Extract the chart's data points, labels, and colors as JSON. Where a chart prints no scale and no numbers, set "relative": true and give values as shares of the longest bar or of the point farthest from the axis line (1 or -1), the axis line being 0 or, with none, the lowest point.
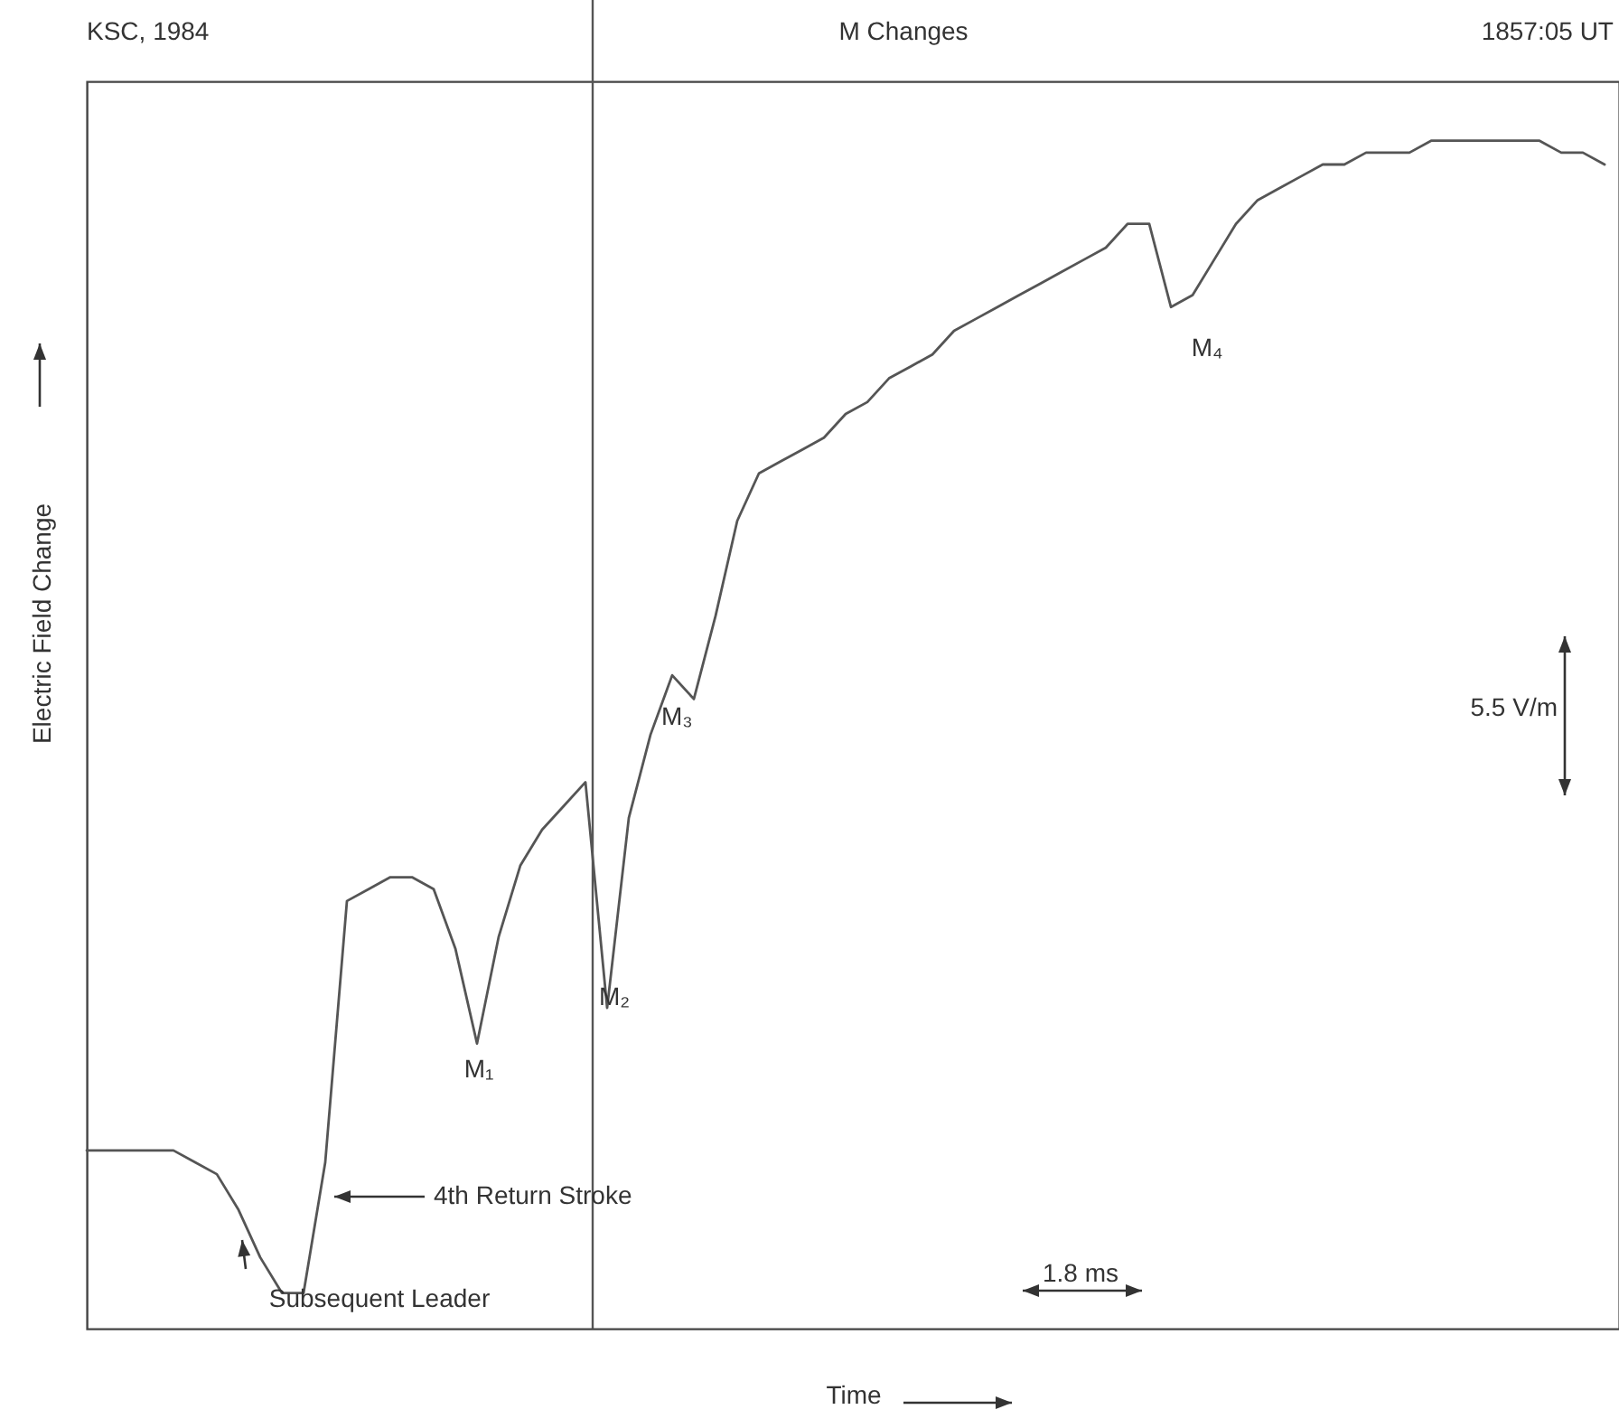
{
  "chart_data": {
    "type": "line",
    "title": "M Changes",
    "xlabel": "Time",
    "ylabel": "Electric Field Change",
    "relative": true,
    "categories": [
      null,
      null,
      null,
      null,
      null,
      null,
      null,
      null,
      null,
      null,
      null,
      null,
      null,
      null,
      null,
      null,
      null,
      null,
      null,
      null,
      null,
      null,
      null,
      null,
      null,
      null,
      null,
      null,
      null,
      null,
      null,
      null,
      null,
      null,
      null,
      null,
      null,
      null,
      null,
      null,
      null,
      null,
      null,
      null,
      null,
      null,
      null,
      null,
      null,
      null,
      null,
      null,
      null,
      null,
      null,
      null,
      null,
      null,
      null,
      null,
      null,
      null,
      null,
      null,
      null,
      null,
      null,
      null,
      null,
      null,
      null
    ],
    "series": [
      {
        "color": "#555555",
        "values": [
          0.15,
          0.15,
          0.15,
          0.15,
          0.15,
          0.14,
          0.13,
          0.1,
          0.06,
          0.03,
          0.03,
          0.14,
          0.36,
          0.37,
          0.38,
          0.38,
          0.37,
          0.32,
          0.24,
          0.33,
          0.39,
          0.42,
          0.44,
          0.46,
          0.27,
          0.43,
          0.5,
          0.55,
          0.53,
          0.6,
          0.68,
          0.72,
          0.73,
          0.74,
          0.75,
          0.77,
          0.78,
          0.8,
          0.81,
          0.82,
          0.84,
          0.85,
          0.86,
          0.87,
          0.88,
          0.89,
          0.9,
          0.91,
          0.93,
          0.93,
          0.86,
          0.87,
          0.9,
          0.93,
          0.95,
          0.96,
          0.97,
          0.98,
          0.98,
          0.99,
          0.99,
          0.99,
          1.0,
          1.0,
          1.0,
          1.0,
          1.0,
          1.0,
          0.99,
          0.99,
          0.98
        ]
      }
    ],
    "annotations": [
      "KSC, 1984",
      "1857:05 UT",
      "M₁",
      "M₂",
      "M₃",
      "M₄",
      "4th Return Stroke",
      "Subsequent Leader",
      "5.5 V/m",
      "1.8 ms"
    ]
  }
}
